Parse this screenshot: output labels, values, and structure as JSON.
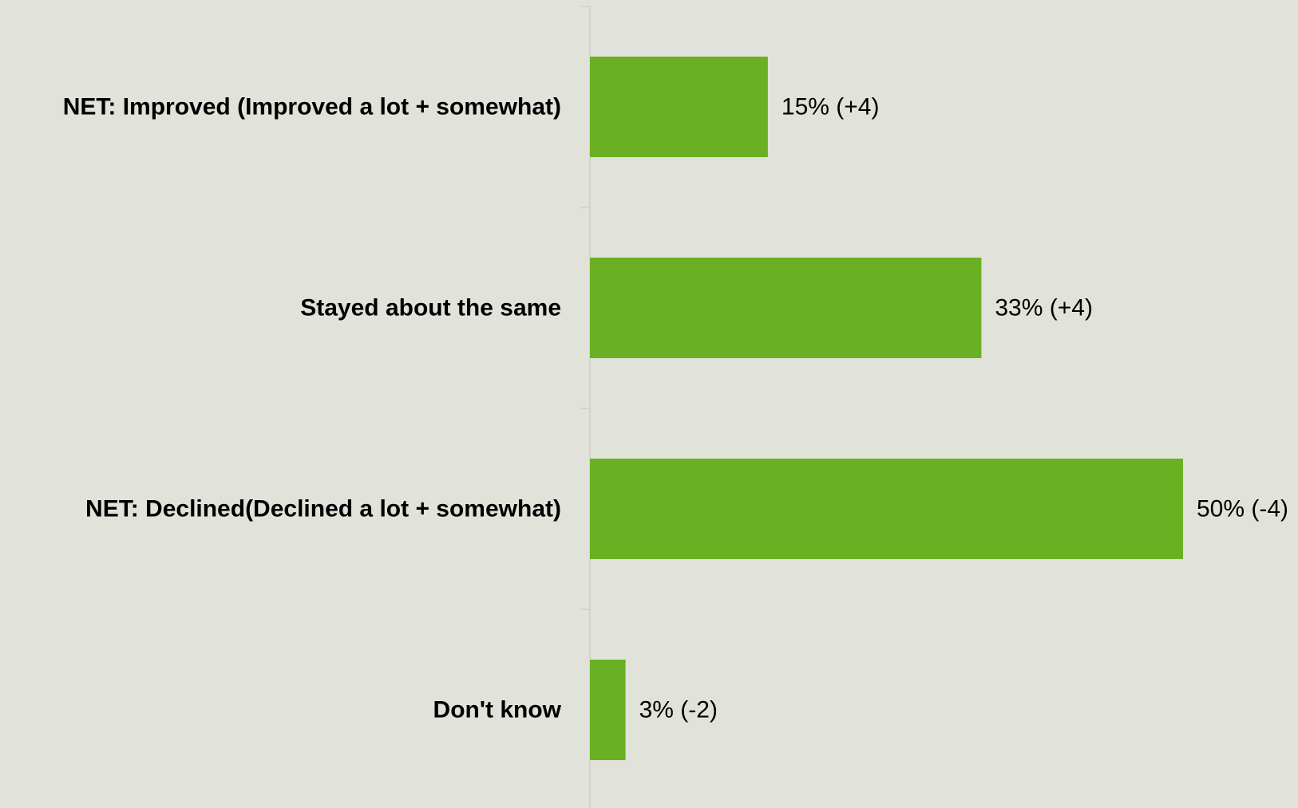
{
  "chart_data": {
    "type": "bar",
    "orientation": "horizontal",
    "categories": [
      "NET: Improved (Improved a lot + somewhat)",
      "Stayed about the same",
      "NET: Declined(Declined a lot + somewhat)",
      "Don't know"
    ],
    "values": [
      15,
      33,
      50,
      3
    ],
    "data_labels": [
      "15% (+4)",
      "33% (+4)",
      "50% (-4)",
      "3% (-2)"
    ],
    "unit": "%",
    "xlim": [
      0,
      50
    ],
    "title": "",
    "xlabel": "",
    "ylabel": "",
    "grid": false,
    "legend": "none",
    "colors": {
      "bar": "#6ab023",
      "background": "#e1e2da",
      "axis": "#cfd0c8"
    }
  }
}
